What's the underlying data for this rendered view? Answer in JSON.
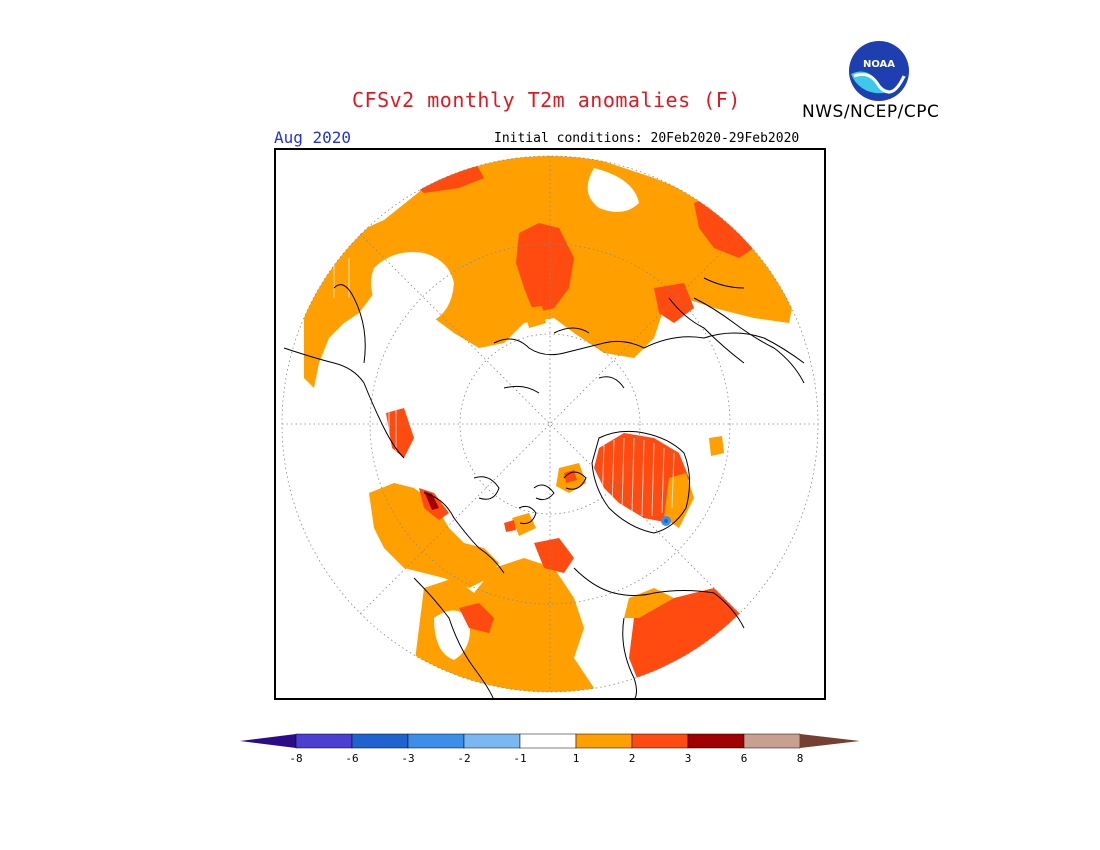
{
  "header": {
    "title": "CFSv2 monthly T2m anomalies (F)",
    "agency": "NWS/NCEP/CPC",
    "logo_text": "NOAA",
    "month": "Aug 2020",
    "initial_conditions": "Initial conditions: 20Feb2020-29Feb2020"
  },
  "legend": {
    "ticks": [
      "-8",
      "-6",
      "-3",
      "-2",
      "-1",
      "1",
      "2",
      "3",
      "6",
      "8"
    ],
    "colors": {
      "below_min": "#2a0c8a",
      "b1": "#4a3fd0",
      "b2": "#1f63d0",
      "b3": "#3d8ee8",
      "b4": "#7ab8f0",
      "neutral": "#ffffff",
      "r1": "#ff9f00",
      "r2": "#ff4a10",
      "r3": "#a00000",
      "r4": "#c8a090",
      "above_max": "#744030"
    }
  },
  "map": {
    "projection": "north-polar-stereographic",
    "colors": {
      "land_outline": "#000000",
      "grid": "#888888",
      "warm1": "#ff9f00",
      "warm2": "#ff4a10",
      "warm3": "#a00000",
      "cool": "#3d8ee8"
    }
  }
}
